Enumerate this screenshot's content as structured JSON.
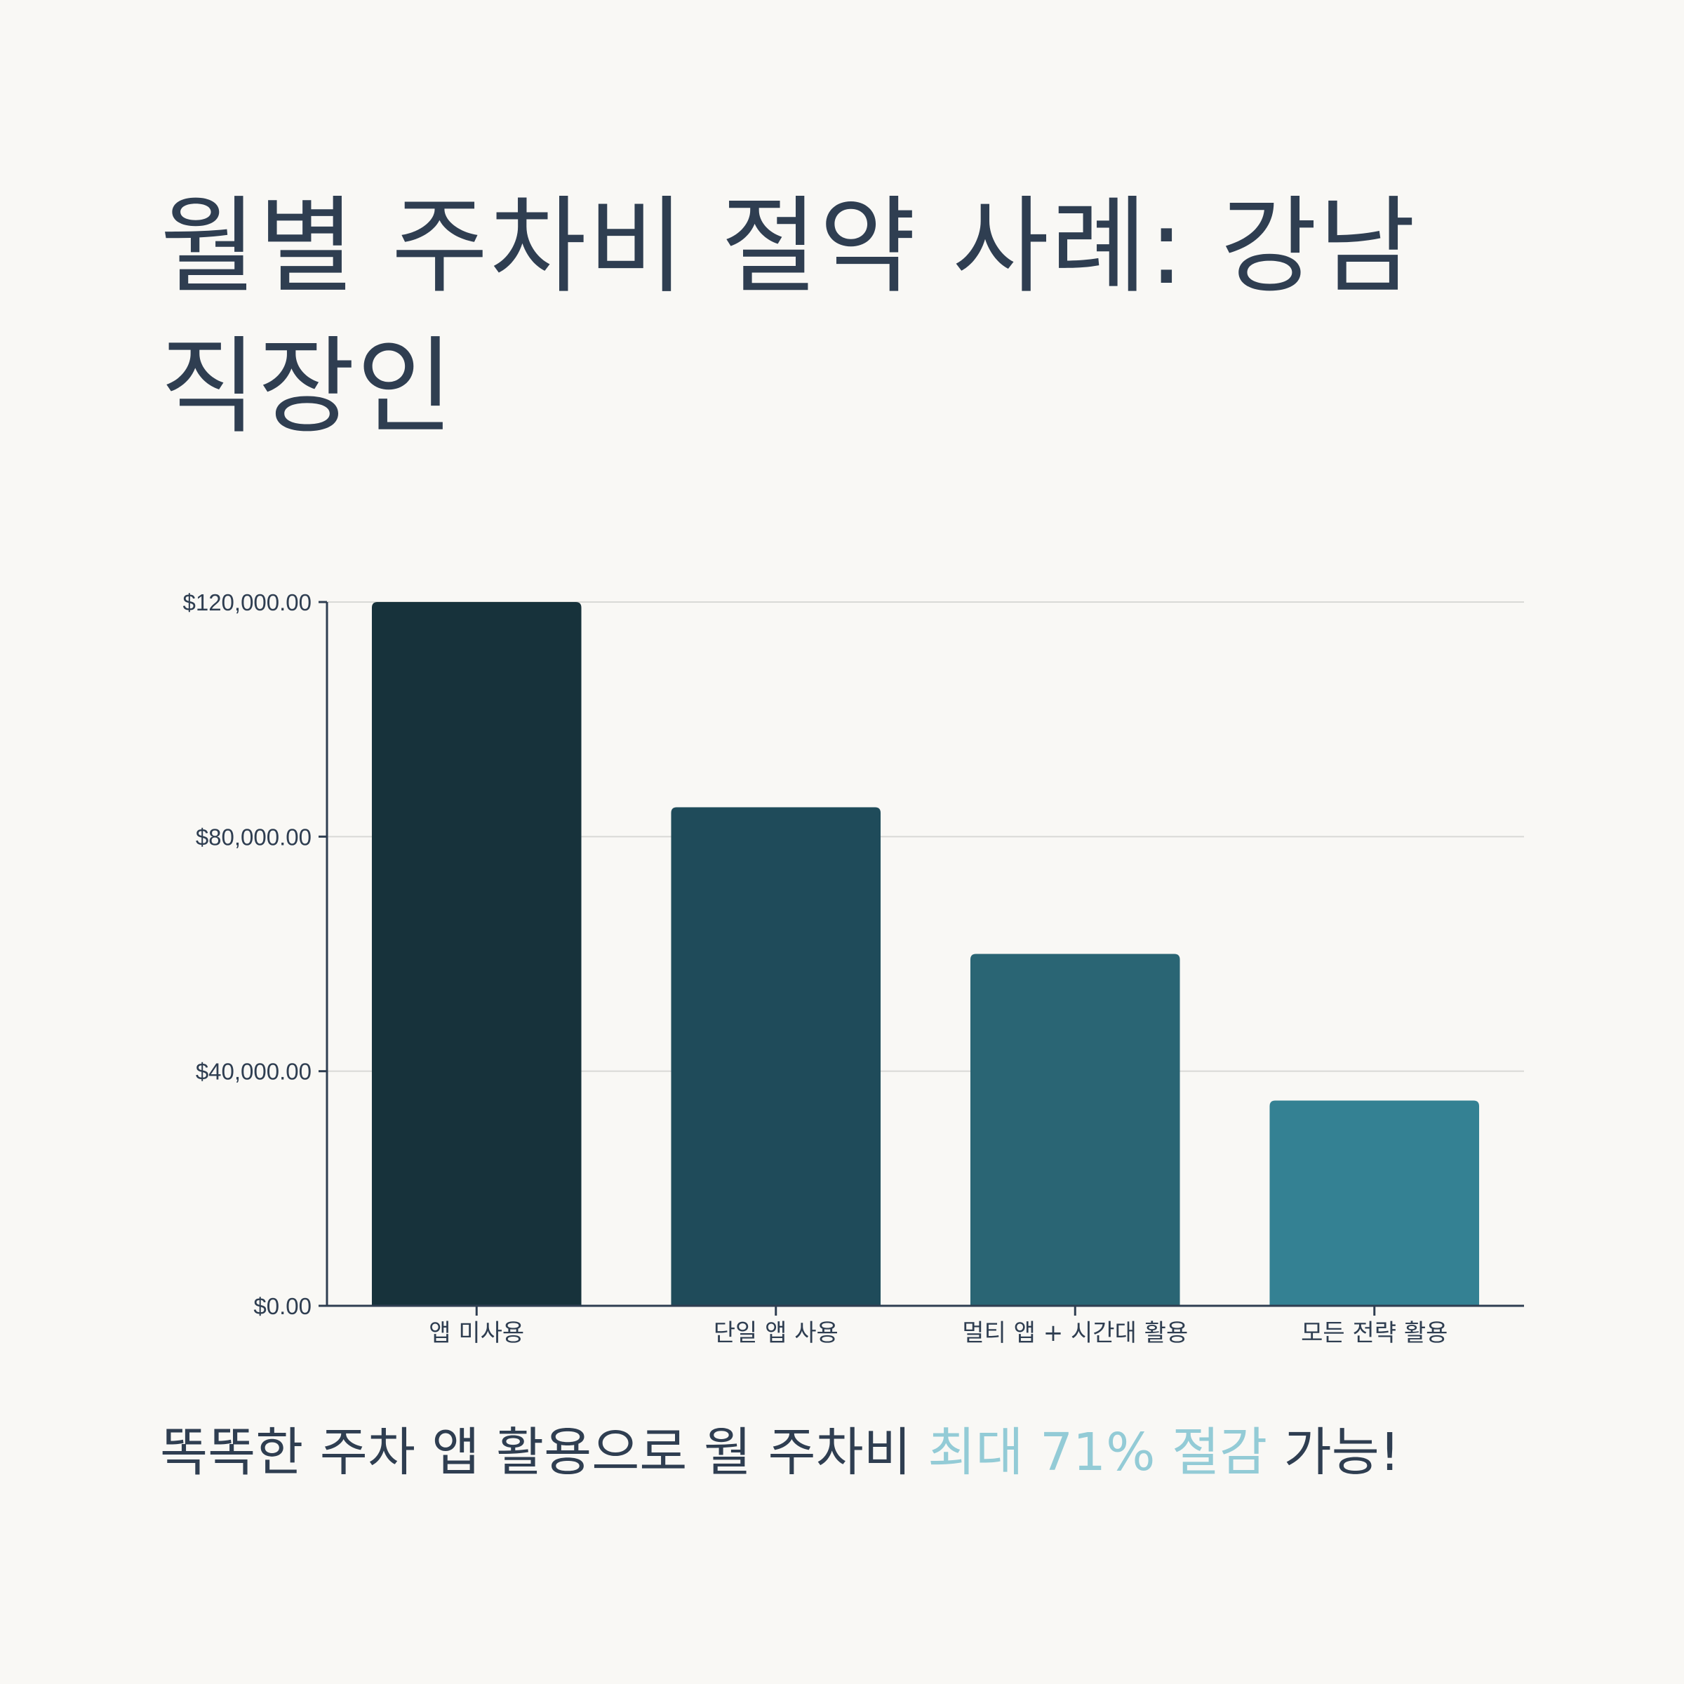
{
  "header": {
    "title": "월별 주차비 절약 사례: 강남 직장인"
  },
  "chart_data": {
    "type": "bar",
    "categories": [
      "앱 미사용",
      "단일 앱 사용",
      "멀티 앱 + 시간대 활용",
      "모든 전략 활용"
    ],
    "values": [
      120000,
      85000,
      60000,
      35000
    ],
    "ylim": [
      0,
      120000
    ],
    "yticks": [
      0,
      40000,
      80000,
      120000
    ],
    "ytick_labels": [
      "$0.00",
      "$40,000.00",
      "$80,000.00",
      "$120,000.00"
    ],
    "bar_colors": [
      "#17323b",
      "#1f4b5a",
      "#2a6574",
      "#348193"
    ],
    "grid": true,
    "title": "",
    "xlabel": "",
    "ylabel": ""
  },
  "footer": {
    "caption_before": "똑똑한 주차 앱 활용으로 월 주차비 ",
    "caption_highlight": "최대 71% 절감",
    "caption_after": " 가능!",
    "highlight_color": "#93cbd6"
  }
}
